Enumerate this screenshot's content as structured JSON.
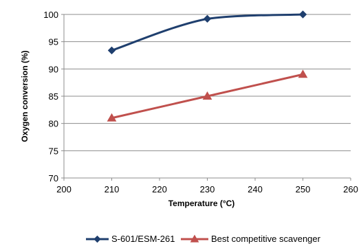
{
  "chart_data": {
    "type": "line",
    "xlabel": "Temperature (°C)",
    "ylabel": "Oxygen conversion (%)",
    "xlim": [
      200,
      260
    ],
    "ylim": [
      70,
      100
    ],
    "x_ticks": [
      "200",
      "210",
      "220",
      "230",
      "240",
      "250",
      "260"
    ],
    "y_ticks": [
      "70",
      "75",
      "80",
      "85",
      "90",
      "95",
      "100"
    ],
    "grid": "horizontal",
    "legend_position": "bottom",
    "series": [
      {
        "name": "S-601/ESM-261",
        "color": "#1f3f6e",
        "marker": "diamond",
        "smooth": true,
        "points": [
          {
            "x": 210,
            "y": 93.4
          },
          {
            "x": 230,
            "y": 99.2
          },
          {
            "x": 250,
            "y": 100
          }
        ]
      },
      {
        "name": "Best competitive scavenger",
        "color": "#c0504d",
        "marker": "triangle",
        "smooth": false,
        "points": [
          {
            "x": 210,
            "y": 81
          },
          {
            "x": 230,
            "y": 85
          },
          {
            "x": 250,
            "y": 89
          }
        ]
      }
    ]
  }
}
